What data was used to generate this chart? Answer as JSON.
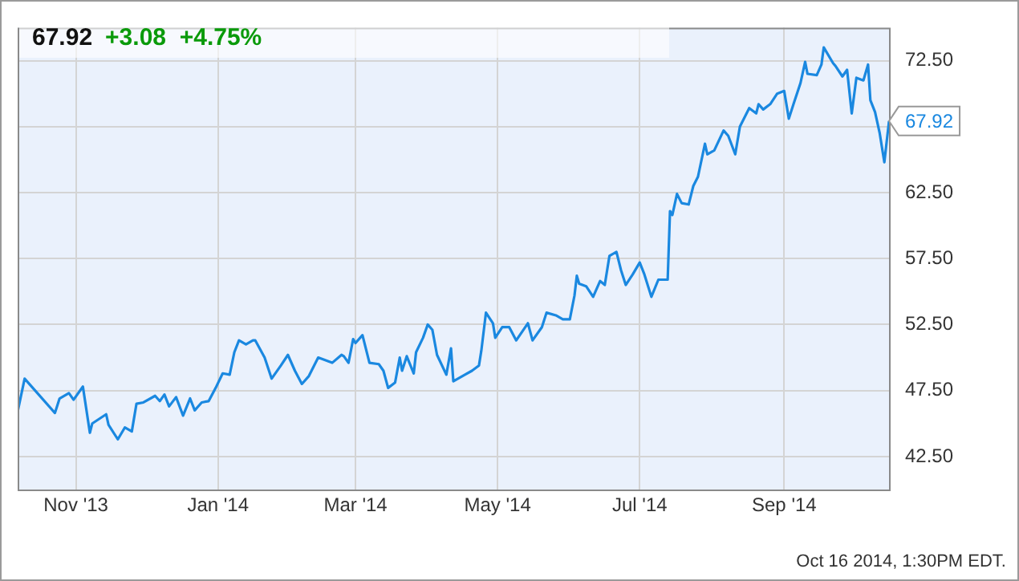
{
  "chart_data": {
    "type": "line",
    "title": "67.92",
    "subtitle": "+3.08  +4.75%",
    "x": [
      "2013-10-07",
      "2013-10-10",
      "2013-10-23",
      "2013-10-25",
      "2013-10-29",
      "2013-10-31",
      "2013-11-04",
      "2013-11-07",
      "2013-11-08",
      "2013-11-14",
      "2013-11-15",
      "2013-11-19",
      "2013-11-22",
      "2013-11-25",
      "2013-11-27",
      "2013-11-30",
      "2013-12-05",
      "2013-12-07",
      "2013-12-09",
      "2013-12-11",
      "2013-12-14",
      "2013-12-17",
      "2013-12-20",
      "2013-12-22",
      "2013-12-25",
      "2013-12-28",
      "2013-12-31",
      "2014-01-03",
      "2014-01-06",
      "2014-01-08",
      "2014-01-10",
      "2014-01-13",
      "2014-01-16",
      "2014-01-17",
      "2014-01-21",
      "2014-01-24",
      "2014-01-28",
      "2014-01-31",
      "2014-02-03",
      "2014-02-06",
      "2014-02-09",
      "2014-02-13",
      "2014-02-19",
      "2014-02-23",
      "2014-02-24",
      "2014-02-26",
      "2014-02-28",
      "2014-03-01",
      "2014-03-04",
      "2014-03-07",
      "2014-03-11",
      "2014-03-13",
      "2014-03-15",
      "2014-03-18",
      "2014-03-20",
      "2014-03-21",
      "2014-03-23",
      "2014-03-26",
      "2014-03-27",
      "2014-03-30",
      "2014-04-01",
      "2014-04-03",
      "2014-04-05",
      "2014-04-09",
      "2014-04-11",
      "2014-04-12",
      "2014-04-17",
      "2014-04-20",
      "2014-04-23",
      "2014-04-24",
      "2014-04-26",
      "2014-04-29",
      "2014-04-30",
      "2014-05-03",
      "2014-05-06",
      "2014-05-09",
      "2014-05-14",
      "2014-05-16",
      "2014-05-20",
      "2014-05-22",
      "2014-05-26",
      "2014-05-29",
      "2014-06-01",
      "2014-06-03",
      "2014-06-04",
      "2014-06-05",
      "2014-06-08",
      "2014-06-11",
      "2014-06-14",
      "2014-06-16",
      "2014-06-18",
      "2014-06-21",
      "2014-06-23",
      "2014-06-25",
      "2014-06-28",
      "2014-07-01",
      "2014-07-03",
      "2014-07-06",
      "2014-07-09",
      "2014-07-13",
      "2014-07-14",
      "2014-07-15",
      "2014-07-17",
      "2014-07-19",
      "2014-07-22",
      "2014-07-24",
      "2014-07-26",
      "2014-07-29",
      "2014-07-30",
      "2014-08-02",
      "2014-08-06",
      "2014-08-08",
      "2014-08-11",
      "2014-08-13",
      "2014-08-17",
      "2014-08-20",
      "2014-08-21",
      "2014-08-23",
      "2014-08-26",
      "2014-08-29",
      "2014-09-01",
      "2014-09-03",
      "2014-09-05",
      "2014-09-08",
      "2014-09-10",
      "2014-09-11",
      "2014-09-15",
      "2014-09-17",
      "2014-09-18",
      "2014-09-22",
      "2014-09-23",
      "2014-09-26",
      "2014-09-28",
      "2014-09-30",
      "2014-10-02",
      "2014-10-05",
      "2014-10-07",
      "2014-10-08",
      "2014-10-10",
      "2014-10-12",
      "2014-10-14",
      "2014-10-16"
    ],
    "series": [
      {
        "color": "#1a88e0",
        "values": [
          45.9,
          48.4,
          45.8,
          46.9,
          47.3,
          46.8,
          47.8,
          44.3,
          45.0,
          45.7,
          44.9,
          43.8,
          44.7,
          44.4,
          46.5,
          46.6,
          47.1,
          46.7,
          47.2,
          46.3,
          47.0,
          45.6,
          46.9,
          46.0,
          46.6,
          46.7,
          47.7,
          48.8,
          48.7,
          50.4,
          51.3,
          51.0,
          51.3,
          51.3,
          50.0,
          48.4,
          49.4,
          50.2,
          49.0,
          48.0,
          48.6,
          50.0,
          49.6,
          50.2,
          50.1,
          49.6,
          51.4,
          51.1,
          51.7,
          49.6,
          49.5,
          49.0,
          47.7,
          48.1,
          50.0,
          49.0,
          50.1,
          48.8,
          50.4,
          51.5,
          52.5,
          52.1,
          50.2,
          48.7,
          50.7,
          48.2,
          48.7,
          49.0,
          49.4,
          50.5,
          53.4,
          52.6,
          51.5,
          52.3,
          52.3,
          51.3,
          52.6,
          51.3,
          52.3,
          53.4,
          53.2,
          52.9,
          52.9,
          54.7,
          56.2,
          55.6,
          55.4,
          54.6,
          55.8,
          55.5,
          57.7,
          58.0,
          56.6,
          55.5,
          56.3,
          57.2,
          56.3,
          54.6,
          55.9,
          55.9,
          61.1,
          60.8,
          62.4,
          61.7,
          61.6,
          63.0,
          63.7,
          66.2,
          65.4,
          65.7,
          67.2,
          66.8,
          65.4,
          67.5,
          68.9,
          68.5,
          69.2,
          68.8,
          69.2,
          70.0,
          70.2,
          68.1,
          69.2,
          70.8,
          72.4,
          71.5,
          71.4,
          72.2,
          73.5,
          72.3,
          72.1,
          71.3,
          71.8,
          68.5,
          71.2,
          71.0,
          72.2,
          69.5,
          68.6,
          67.0,
          64.8,
          67.92
        ]
      }
    ],
    "xlim": [
      "2013-10-07",
      "2014-10-16"
    ],
    "xticks": [
      {
        "value": "2013-11-01",
        "label": "Nov '13"
      },
      {
        "value": "2014-01-01",
        "label": "Jan '14"
      },
      {
        "value": "2014-03-01",
        "label": "Mar '14"
      },
      {
        "value": "2014-05-01",
        "label": "May '14"
      },
      {
        "value": "2014-07-01",
        "label": "Jul '14"
      },
      {
        "value": "2014-09-01",
        "label": "Sep '14"
      }
    ],
    "ylim": [
      40,
      75
    ],
    "yticks": [
      {
        "value": 42.5,
        "label": "42.50"
      },
      {
        "value": 47.5,
        "label": "47.50"
      },
      {
        "value": 52.5,
        "label": "52.50"
      },
      {
        "value": 57.5,
        "label": "57.50"
      },
      {
        "value": 62.5,
        "label": "62.50"
      },
      {
        "value": 67.5,
        "label": null
      },
      {
        "value": 72.5,
        "label": "72.50"
      }
    ],
    "grid": true,
    "legend": false,
    "marker": "none",
    "line_style": "solid",
    "annotations": [
      {
        "text": "67.92",
        "x": "2014-10-16",
        "y": 67.92
      },
      "Oct 16 2014, 1:30PM EDT."
    ]
  }
}
